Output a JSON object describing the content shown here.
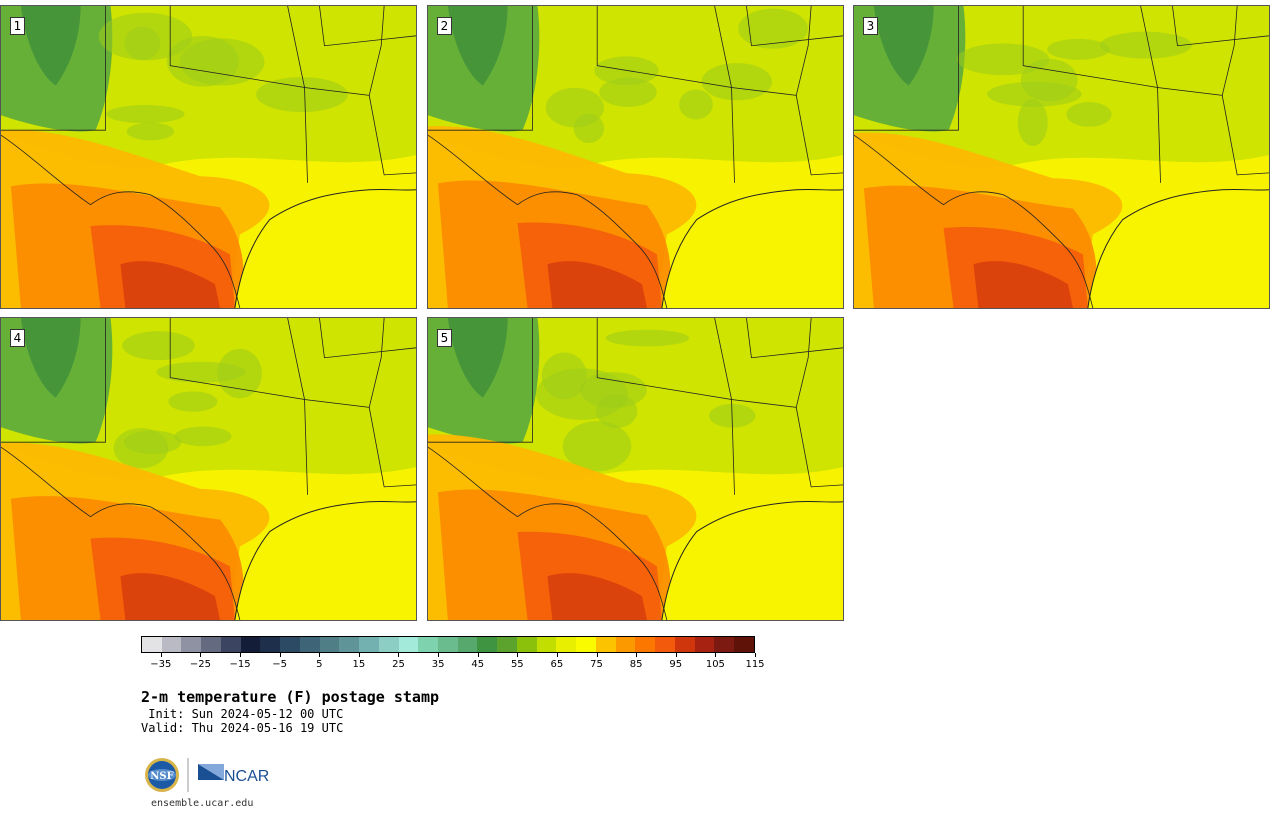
{
  "panels": [
    {
      "label": "1",
      "heat": 0.62,
      "cool": 0.55
    },
    {
      "label": "2",
      "heat": 0.72,
      "cool": 0.5
    },
    {
      "label": "3",
      "heat": 0.55,
      "cool": 0.6
    },
    {
      "label": "4",
      "heat": 0.6,
      "cool": 0.58
    },
    {
      "label": "5",
      "heat": 0.82,
      "cool": 0.45
    }
  ],
  "colorbar": {
    "colors": [
      "#e3e3e6",
      "#b9bac4",
      "#8e92a3",
      "#646b81",
      "#3b4562",
      "#141d37",
      "#1e2f4c",
      "#2d4a64",
      "#3d6477",
      "#4f7e87",
      "#5f9599",
      "#72b1af",
      "#8ccec4",
      "#a4eadb",
      "#7ed3ae",
      "#6abc8f",
      "#57a86d",
      "#3e9440",
      "#5ba32c",
      "#8cc10b",
      "#c2dd00",
      "#e8ef00",
      "#fbfb00",
      "#fcc400",
      "#fc9900",
      "#fb7700",
      "#f35a0c",
      "#cf360b",
      "#a82211",
      "#7c1a11",
      "#5e1208"
    ],
    "tick_labels": [
      "−35",
      "−25",
      "−15",
      "−5",
      "5",
      "15",
      "25",
      "35",
      "45",
      "55",
      "65",
      "75",
      "85",
      "95",
      "105",
      "115"
    ],
    "vmin": -40,
    "vmax": 115
  },
  "title": "2-m temperature (F) postage stamp",
  "init": " Init: Sun 2024-05-12 00 UTC",
  "valid": "Valid: Thu 2024-05-16 19 UTC",
  "logos": {
    "nsf": "NSF",
    "ncar": "NCAR"
  },
  "site": "ensemble.ucar.edu"
}
